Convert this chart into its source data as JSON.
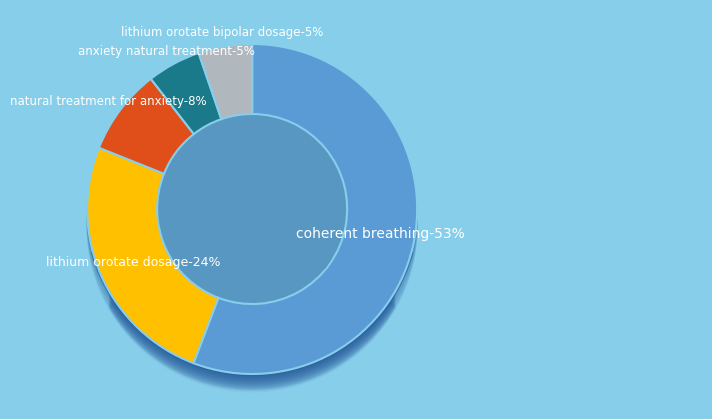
{
  "labels": [
    "coherent breathing-53%",
    "lithium orotate dosage-24%",
    "natural treatment for anxiety-8%",
    "anxiety natural treatment-5%",
    "lithium orotate bipolar dosage-5%"
  ],
  "values": [
    53,
    24,
    8,
    5,
    5
  ],
  "colors": [
    "#5B9BD5",
    "#FFC000",
    "#E04E1A",
    "#1A7A8A",
    "#B0B8BE"
  ],
  "background_color": "#87CEEB",
  "text_color": "#FFFFFF",
  "startangle": 90,
  "shadow_color": "#2B5FA0",
  "donut_edge_color": "#2B5FA0"
}
